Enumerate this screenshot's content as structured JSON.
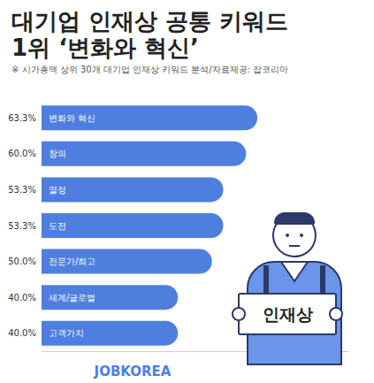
{
  "chart_data": {
    "type": "bar",
    "orientation": "horizontal",
    "title": "대기업 인재상 공통 키워드\n1위 ‘변화와 혁신’",
    "subtitle": "※ 시가총액 상위 30개 대기업 인재상 키워드 분석/자료제공: 잡코리아",
    "categories": [
      "변화와 혁신",
      "창의",
      "열정",
      "도전",
      "전문가/최고",
      "세계/글로벌",
      "고객가치"
    ],
    "values": [
      63.3,
      60.0,
      53.3,
      53.3,
      50.0,
      40.0,
      40.0
    ],
    "value_labels": [
      "63.3%",
      "60.0%",
      "53.3%",
      "53.3%",
      "50.0%",
      "40.0%",
      "40.0%"
    ],
    "color": "#4e7fdf",
    "xlim": [
      0,
      90
    ],
    "grid": false,
    "data_labels": true,
    "tick_labels": false,
    "annotations": [
      {
        "text": "인재상"
      },
      {
        "text": "JOBKOREA"
      }
    ]
  }
}
